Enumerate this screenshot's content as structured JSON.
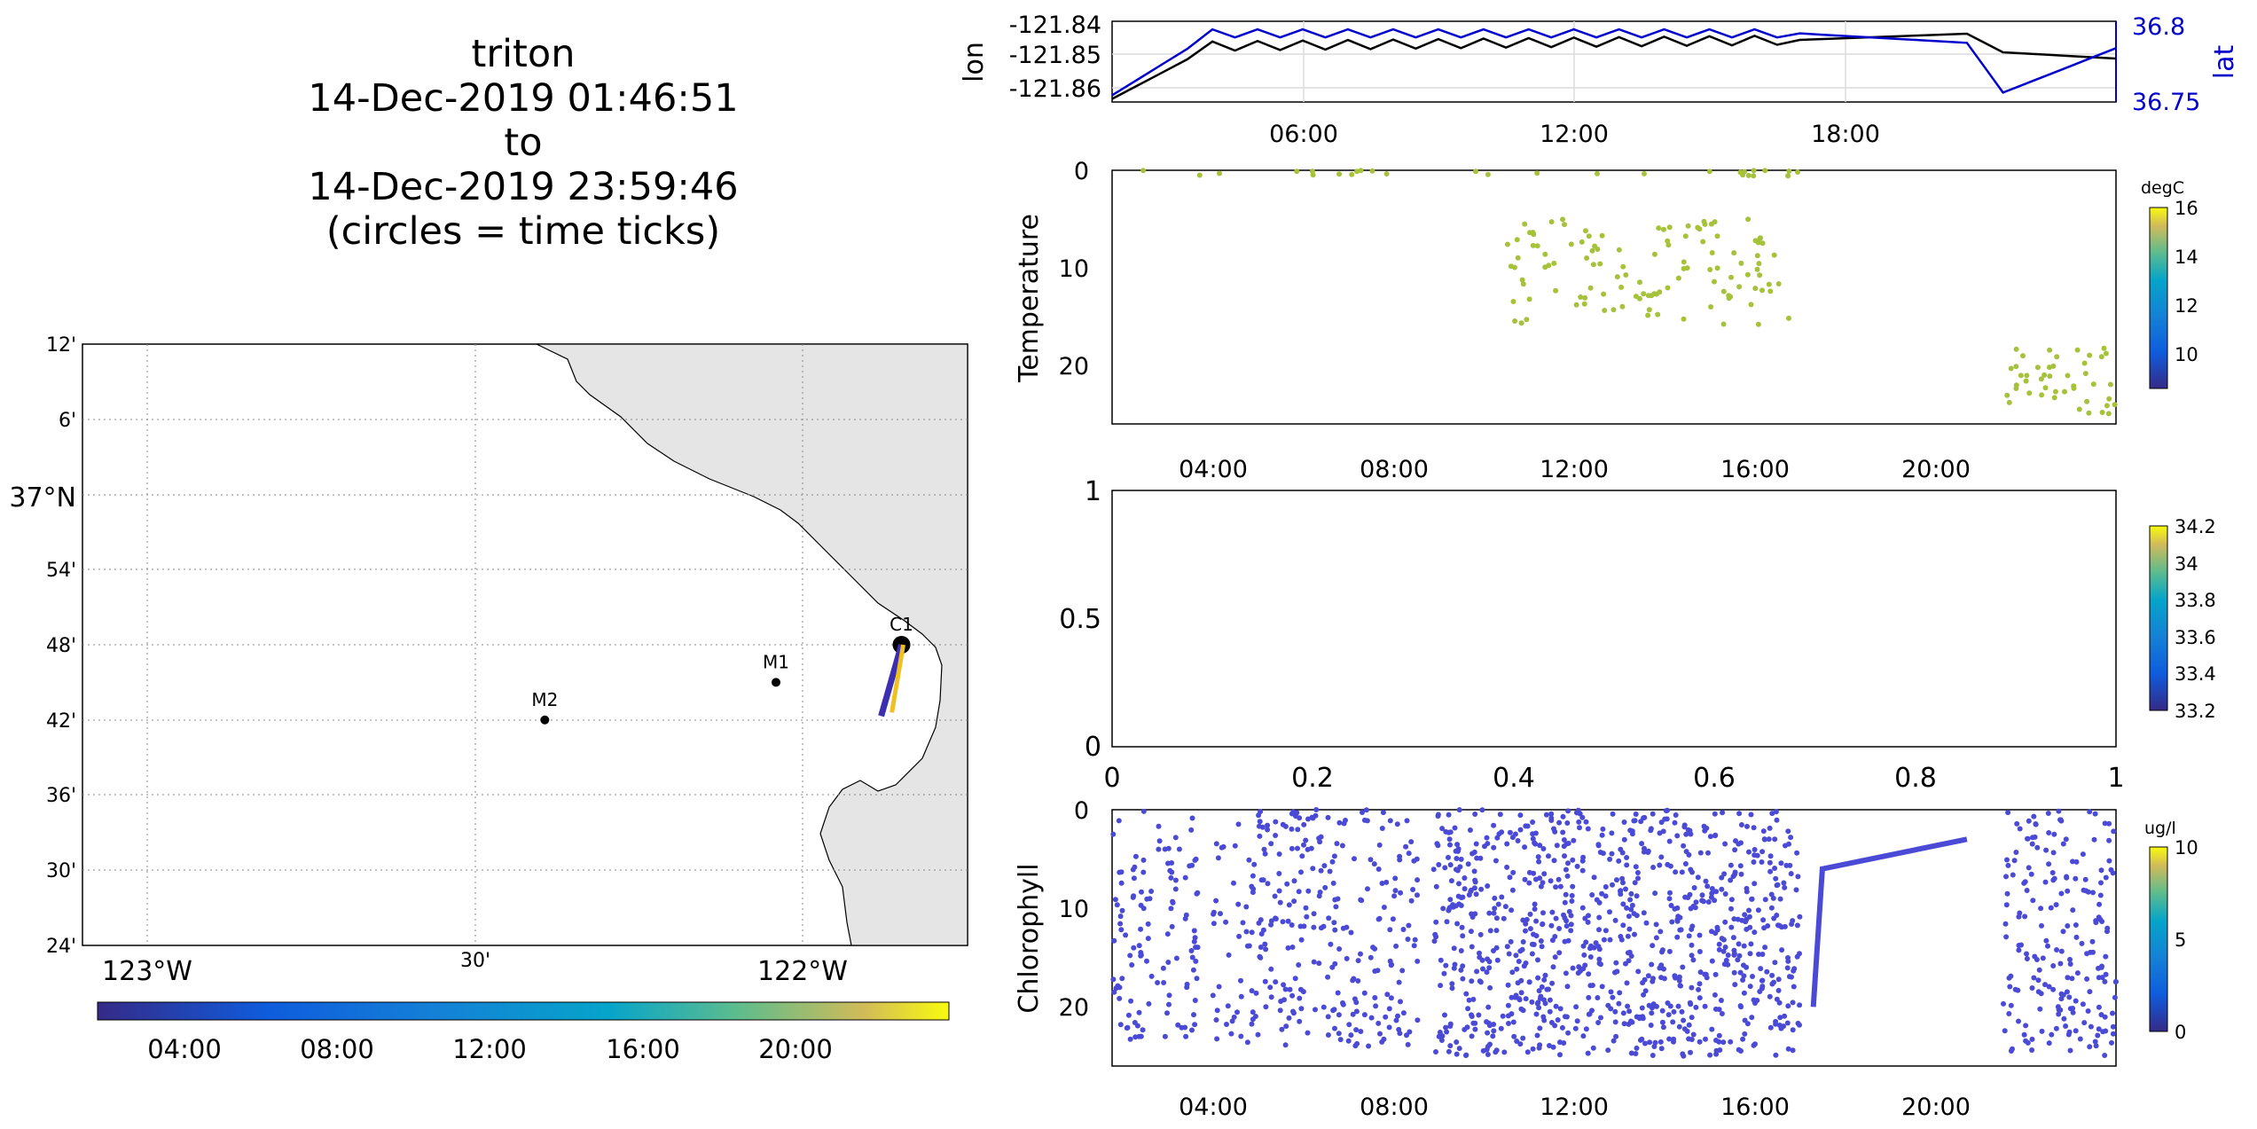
{
  "title": {
    "line1": "triton",
    "line2": "14-Dec-2019 01:46:51",
    "line3": "to",
    "line4": "14-Dec-2019 23:59:46",
    "line5": "(circles = time ticks)"
  },
  "colors": {
    "lon_line": "#000000",
    "lat_line": "#0000cc",
    "land": "#e5e5e5",
    "temperature_points": "#a6c23a",
    "chlorophyll_points": "#4a4ad6",
    "track_start": "#3b2fb0",
    "track_end": "#f0c020"
  },
  "map": {
    "lat_tick_labels": [
      "12'",
      "6'",
      "37°N",
      "54'",
      "48'",
      "42'",
      "36'",
      "30'",
      "24'"
    ],
    "lon_tick_labels": [
      "123°W",
      "30'",
      "122°W"
    ],
    "stations": [
      {
        "name": "M2",
        "lon": -122.38,
        "lat": 36.7
      },
      {
        "name": "M1",
        "lon": -122.03,
        "lat": 36.75
      },
      {
        "name": "C1",
        "lon": -121.84,
        "lat": 36.8
      }
    ],
    "track": {
      "lon_start": -121.86,
      "lat_start": 36.75,
      "lon_end": -121.84,
      "lat_end": 36.8
    },
    "colorbar_ticks": [
      "04:00",
      "08:00",
      "12:00",
      "16:00",
      "20:00"
    ]
  },
  "chart_data": [
    {
      "type": "line",
      "ylabel": "lon",
      "ylabel_right": "lat",
      "x_ticks": [
        "06:00",
        "12:00",
        "18:00"
      ],
      "y_ticks": [
        "-121.84",
        "-121.85",
        "-121.86"
      ],
      "y_ticks_right": [
        "36.8",
        "36.75"
      ],
      "xlim": [
        1.78,
        24.0
      ],
      "ylim": [
        -121.864,
        -121.838
      ],
      "ylim_right": [
        36.745,
        36.805
      ],
      "series": [
        {
          "name": "lon",
          "x": [
            1.78,
            4.0,
            17.0,
            20.7,
            21.5,
            24.0
          ],
          "y": [
            -121.863,
            -121.846,
            -121.844,
            -121.842,
            -121.848,
            -121.85
          ]
        },
        {
          "name": "lat",
          "x": [
            1.78,
            4.0,
            17.0,
            20.7,
            21.5,
            24.0
          ],
          "y": [
            36.75,
            36.796,
            36.796,
            36.789,
            36.752,
            36.785
          ]
        }
      ]
    },
    {
      "type": "scatter",
      "ylabel": "Temperature",
      "x_ticks": [
        "04:00",
        "08:00",
        "12:00",
        "16:00",
        "20:00"
      ],
      "y_ticks": [
        "0",
        "10",
        "20"
      ],
      "xlim": [
        1.78,
        24.0
      ],
      "ylim": [
        26,
        0
      ],
      "colorbar": {
        "label": "degC",
        "ticks": [
          "16",
          "14",
          "12",
          "10"
        ]
      },
      "clusters": [
        {
          "x_range": [
            2.3,
            17.0
          ],
          "y_range": [
            0,
            0.6
          ],
          "n": 28
        },
        {
          "x_range": [
            10.5,
            16.8
          ],
          "y_range": [
            5,
            16
          ],
          "n": 120
        },
        {
          "x_range": [
            21.5,
            24.0
          ],
          "y_range": [
            18,
            25
          ],
          "n": 45
        }
      ]
    },
    {
      "type": "scatter",
      "x_ticks": [
        "0",
        "0.2",
        "0.4",
        "0.6",
        "0.8",
        "1"
      ],
      "y_ticks": [
        "0",
        "0.5",
        "1"
      ],
      "xlim": [
        0,
        1
      ],
      "ylim": [
        0,
        1
      ],
      "colorbar": {
        "label": "",
        "ticks": [
          "34.2",
          "34",
          "33.8",
          "33.6",
          "33.4",
          "33.2"
        ]
      }
    },
    {
      "type": "scatter",
      "ylabel": "Chlorophyll",
      "x_ticks": [
        "04:00",
        "08:00",
        "12:00",
        "16:00",
        "20:00"
      ],
      "y_ticks": [
        "0",
        "10",
        "20"
      ],
      "xlim": [
        1.78,
        24.0
      ],
      "ylim": [
        26,
        0
      ],
      "colorbar": {
        "label": "ug/l",
        "ticks": [
          "10",
          "5",
          "0"
        ]
      },
      "clusters": [
        {
          "x_range": [
            1.8,
            3.7
          ],
          "y_range": [
            0,
            24
          ],
          "n": 120
        },
        {
          "x_range": [
            4.0,
            8.6
          ],
          "y_range": [
            0,
            24
          ],
          "n": 300
        },
        {
          "x_range": [
            8.9,
            17.0
          ],
          "y_range": [
            0,
            25
          ],
          "n": 900
        },
        {
          "x_range": [
            21.5,
            24.0
          ],
          "y_range": [
            0,
            25
          ],
          "n": 200
        }
      ],
      "line_segment": {
        "x": [
          17.3,
          17.5,
          20.7
        ],
        "y": [
          20,
          6,
          3
        ]
      }
    }
  ]
}
